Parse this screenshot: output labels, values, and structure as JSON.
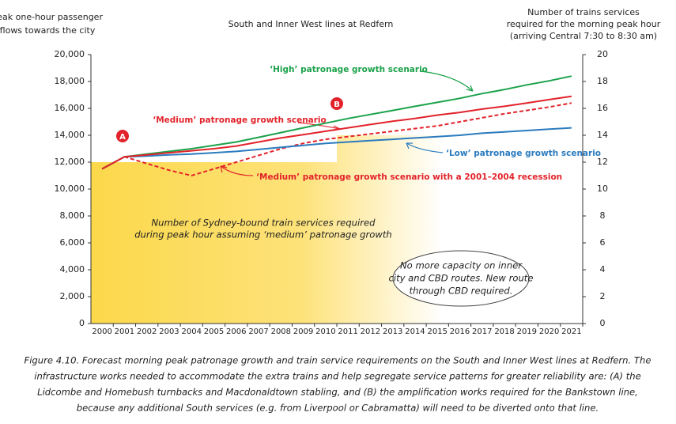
{
  "chart_data": {
    "type": "line",
    "title": "South and Inner West lines at Redfern",
    "ylabel": [
      "Peak one-hour passenger",
      "flows towards the city"
    ],
    "y2label": [
      "Number of trains services",
      "required for the morning peak hour",
      "(arriving Central 7:30 to 8:30 am)"
    ],
    "x": [
      2000,
      2001,
      2002,
      2003,
      2004,
      2005,
      2006,
      2007,
      2008,
      2009,
      2010,
      2011,
      2012,
      2013,
      2014,
      2015,
      2016,
      2017,
      2018,
      2019,
      2020,
      2021
    ],
    "xlim": [
      1999.5,
      2021.5
    ],
    "xticks": [
      2000,
      2001,
      2002,
      2003,
      2004,
      2005,
      2006,
      2007,
      2008,
      2009,
      2010,
      2011,
      2012,
      2013,
      2014,
      2015,
      2016,
      2017,
      2018,
      2019,
      2020,
      2021
    ],
    "ylim": [
      0,
      20000
    ],
    "yticks": [
      0,
      {
        "value": 2000,
        "label": "2,000"
      },
      {
        "value": 4000,
        "label": "4,000"
      },
      {
        "value": 6000,
        "label": "6,000"
      },
      {
        "value": 8000,
        "label": "8,000"
      },
      {
        "value": 10000,
        "label": "10,000"
      },
      {
        "value": 12000,
        "label": "12,000"
      },
      {
        "value": 14000,
        "label": "14,000"
      },
      {
        "value": 16000,
        "label": "16,000"
      },
      {
        "value": 18000,
        "label": "18,000"
      },
      {
        "value": 20000,
        "label": "20,000"
      }
    ],
    "y2lim": [
      0,
      20
    ],
    "y2ticks": [
      0,
      2,
      4,
      6,
      8,
      10,
      12,
      14,
      16,
      18,
      20
    ],
    "grid": false,
    "trains": {
      "axis": "y2",
      "color": "#fcd84a",
      "label": [
        "Number of Sydney-bound train services required",
        "during peak hour assuming ‘medium’ patronage growth"
      ],
      "values": [
        12,
        12,
        12,
        12,
        12,
        12,
        12,
        12,
        12,
        12,
        12,
        14,
        14,
        14,
        14,
        14,
        null,
        null,
        null,
        null,
        null,
        null
      ]
    },
    "series": [
      {
        "name": "‘High’ patronage growth scenario",
        "color": "#1ca24b",
        "dash": false,
        "values": [
          11500,
          12400,
          12600,
          12800,
          13000,
          13250,
          13500,
          13850,
          14200,
          14550,
          14900,
          15250,
          15550,
          15850,
          16150,
          16450,
          16750,
          17100,
          17400,
          17750,
          18050,
          18400
        ]
      },
      {
        "name": "‘Medium’ patronage growth scenario",
        "color": "#e2232b",
        "dash": false,
        "values": [
          11500,
          12400,
          12550,
          12700,
          12850,
          13000,
          13200,
          13500,
          13800,
          14050,
          14300,
          14550,
          14800,
          15050,
          15250,
          15500,
          15700,
          15950,
          16150,
          16400,
          16650,
          16900
        ]
      },
      {
        "name": "‘Low’ patronage growth scenario",
        "color": "#2a7bbf",
        "dash": false,
        "values": [
          11500,
          12400,
          12450,
          12550,
          12600,
          12700,
          12800,
          12950,
          13100,
          13250,
          13400,
          13500,
          13600,
          13700,
          13800,
          13900,
          14000,
          14150,
          14250,
          14350,
          14450,
          14550
        ]
      },
      {
        "name": "‘Medium’ patronage growth scenario with a 2001–2004 recession",
        "color": "#e2232b",
        "dash": true,
        "values": [
          11500,
          12400,
          11900,
          11400,
          11000,
          11500,
          12000,
          12500,
          13000,
          13400,
          13700,
          13900,
          14100,
          14300,
          14500,
          14700,
          15000,
          15300,
          15600,
          15850,
          16100,
          16400
        ]
      }
    ],
    "markers": [
      "A",
      "B"
    ],
    "note": [
      "No more capacity on inner",
      "city and CBD routes. New route",
      "through CBD required."
    ],
    "caption": [
      "Figure 4.10. Forecast morning peak patronage growth and train service requirements on the South and Inner West lines at Redfern. The",
      "infrastructure works needed to accommodate the extra trains and help segregate service patterns for greater reliability are: (A) the",
      "Lidcombe and Homebush turnbacks and Macdonaldtown stabling, and (B) the amplification works required for the Bankstown line,",
      "because any additional South services (e.g. from Liverpool or Cabramatta) will need to be diverted onto that line."
    ]
  }
}
